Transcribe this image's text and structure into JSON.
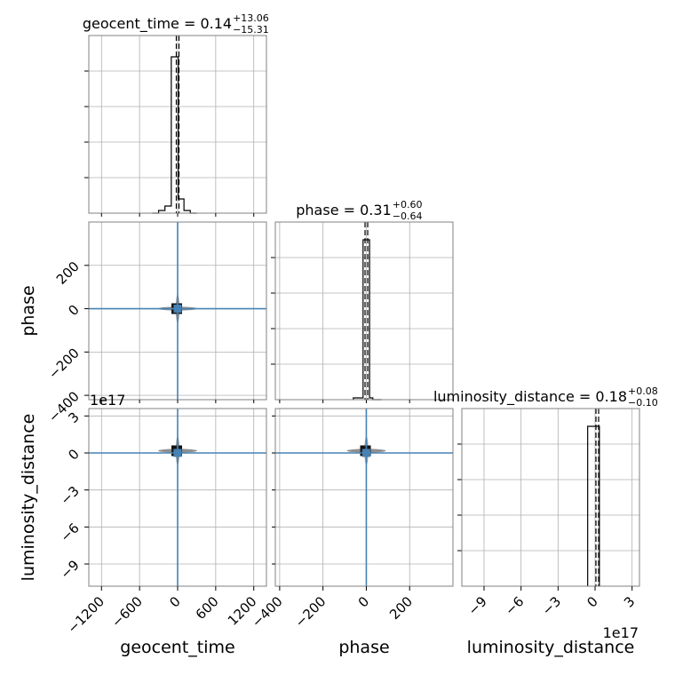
{
  "chart_data": {
    "type": "corner",
    "grid": true,
    "parameters": [
      {
        "name": "geocent_time",
        "axis_label": "geocent_time",
        "title_main": "geocent_time = 0.14",
        "title_plus": "+13.06",
        "title_minus": "−15.31",
        "median": 0.14,
        "truth": 0,
        "range": [
          -1400,
          1400
        ],
        "ticks": [
          -1200,
          -600,
          0,
          600,
          1200
        ],
        "tick_labels": [
          "−1200",
          "−600",
          "0",
          "600",
          "1200"
        ],
        "hist": {
          "edges": [
            -400,
            -300,
            -200,
            -100,
            -10,
            10,
            100,
            200,
            300
          ],
          "counts": [
            0.0,
            0.015,
            0.04,
            0.88,
            0.88,
            0.08,
            0.015,
            0.0
          ]
        }
      },
      {
        "name": "phase",
        "axis_label": "phase",
        "title_main": "phase = 0.31",
        "title_plus": "+0.60",
        "title_minus": "−0.64",
        "median": 0.31,
        "truth": 0,
        "range": [
          -420,
          400
        ],
        "ticks": [
          -400,
          -200,
          0,
          200
        ],
        "tick_labels": [
          "−400",
          "−200",
          "0",
          "200"
        ],
        "hist": {
          "edges": [
            -60,
            -15,
            0,
            15,
            30,
            70
          ],
          "counts": [
            0.01,
            0.9,
            0.9,
            0.01,
            0.0
          ]
        }
      },
      {
        "name": "luminosity_distance",
        "axis_label": "luminosity_distance",
        "title_main": "luminosity_distance = 0.18",
        "title_plus": "+0.08",
        "title_minus": "−0.10",
        "median": 0.18,
        "truth": 0,
        "range": [
          -10.8,
          3.6
        ],
        "ticks": [
          -9,
          -6,
          -3,
          0,
          3
        ],
        "tick_labels": [
          "−9",
          "−6",
          "−3",
          "0",
          "3"
        ],
        "offset_label": "1e17",
        "hist": {
          "edges": [
            -0.6,
            0,
            0.35
          ],
          "counts": [
            0.9,
            0.9
          ]
        }
      }
    ]
  }
}
